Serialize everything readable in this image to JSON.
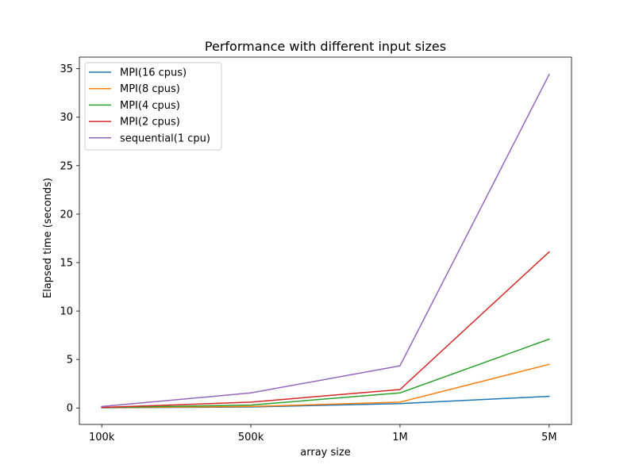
{
  "chart_data": {
    "type": "line",
    "title": "Performance with different input sizes",
    "xlabel": "array size",
    "ylabel": "Elapsed time (seconds)",
    "categories": [
      "100k",
      "500k",
      "1M",
      "5M"
    ],
    "ylim": [
      -1.7,
      36.2
    ],
    "yticks": [
      0,
      5,
      10,
      15,
      20,
      25,
      30,
      35
    ],
    "grid": false,
    "legend_position": "top-left",
    "series": [
      {
        "name": "MPI(16 cpus)",
        "color": "#1f77b4",
        "values": [
          0.02,
          0.1,
          0.45,
          1.2
        ]
      },
      {
        "name": "MPI(8 cpus)",
        "color": "#ff7f0e",
        "values": [
          0.03,
          0.15,
          0.6,
          4.5
        ]
      },
      {
        "name": "MPI(4 cpus)",
        "color": "#2ca02c",
        "values": [
          0.04,
          0.3,
          1.55,
          7.1
        ]
      },
      {
        "name": "MPI(2 cpus)",
        "color": "#d62728",
        "values": [
          0.05,
          0.6,
          1.9,
          16.1
        ]
      },
      {
        "name": "sequential(1 cpu)",
        "color": "#9467bd",
        "values": [
          0.15,
          1.55,
          4.35,
          34.4
        ]
      }
    ]
  }
}
